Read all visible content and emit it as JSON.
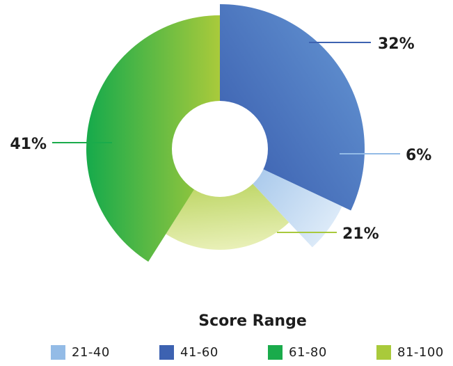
{
  "chart_data": {
    "type": "pie",
    "variant": "variable-radius donut",
    "legend_title": "Score Range",
    "legend_position": "bottom",
    "slices": [
      {
        "name": "41-60",
        "value": 32,
        "label": "32%",
        "color_start": "#3d62b1",
        "color_end": "#5b89cb"
      },
      {
        "name": "21-40",
        "value": 6,
        "label": "6%",
        "color_start": "#93bbe6",
        "color_end": "#dceaf8"
      },
      {
        "name": "81-100",
        "value": 21,
        "label": "21%",
        "color_start": "#a8c93c",
        "color_end": "#e9f0b8"
      },
      {
        "name": "61-80",
        "value": 41,
        "label": "41%",
        "color_start": "#1aab4b",
        "color_end": "#a9ca3b"
      }
    ],
    "legend": [
      {
        "name": "21-40",
        "color": "#93bbe6"
      },
      {
        "name": "41-60",
        "color": "#3d62b1"
      },
      {
        "name": "61-80",
        "color": "#1aab4b"
      },
      {
        "name": "81-100",
        "color": "#a9ca3b"
      }
    ]
  }
}
